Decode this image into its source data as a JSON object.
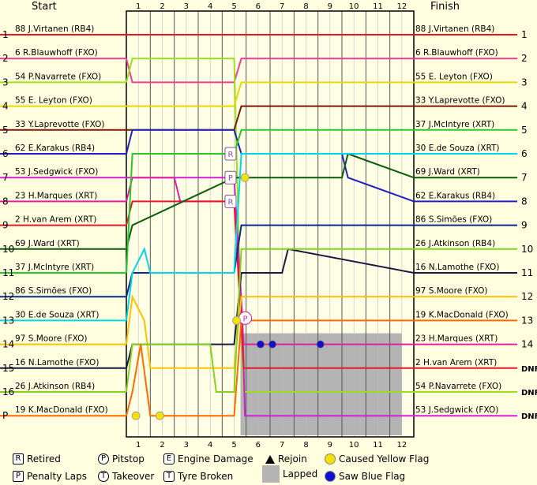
{
  "header": {
    "start": "Start",
    "finish": "Finish"
  },
  "chart_data": {
    "type": "line",
    "laps": 12,
    "x_ticks": [
      "1",
      "2",
      "3",
      "4",
      "5",
      "6",
      "7",
      "8",
      "9",
      "10",
      "11",
      "12"
    ],
    "y_left_labels": [
      "1",
      "2",
      "3",
      "4",
      "5",
      "6",
      "7",
      "8",
      "9",
      "10",
      "11",
      "12",
      "13",
      "14",
      "15",
      "16",
      "P"
    ],
    "y_right_labels": [
      "1",
      "2",
      "3",
      "4",
      "5",
      "6",
      "7",
      "8",
      "9",
      "10",
      "11",
      "12",
      "13",
      "14",
      "DNF",
      "DNF",
      "DNF"
    ],
    "lapped_range": [
      4.5,
      11.5
    ],
    "series": [
      {
        "name": "88 J.Virtanen (RB4)",
        "finish": "88 J.Virtanen (RB4)",
        "color": "#e8161b",
        "points": [
          [
            0,
            1
          ],
          [
            12,
            1
          ]
        ]
      },
      {
        "name": "6 R.Blauwhoff (FXO)",
        "finish": "6 R.Blauwhoff (FXO)",
        "color": "#f23c8c",
        "points": [
          [
            0,
            2
          ],
          [
            0.25,
            3
          ],
          [
            4.5,
            3
          ],
          [
            4.8,
            2
          ],
          [
            12,
            2
          ]
        ]
      },
      {
        "name": "54 P.Navarrete (FXO)",
        "finish": "54 P.Navarrete (FXO)",
        "color": "#9de017",
        "points": [
          [
            0,
            3
          ],
          [
            0.25,
            2
          ],
          [
            4.5,
            2
          ],
          [
            4.75,
            12
          ],
          [
            4.9,
            16
          ],
          [
            12,
            16
          ]
        ]
      },
      {
        "name": "55 E. Leyton (FXO)",
        "finish": "55 E. Leyton (FXO)",
        "color": "#e6d800",
        "points": [
          [
            0,
            4
          ],
          [
            4.5,
            4
          ],
          [
            4.8,
            3
          ],
          [
            12,
            3
          ]
        ]
      },
      {
        "name": "33 Y.Laprevotte (FXO)",
        "finish": "33 Y.Laprevotte (FXO)",
        "color": "#7a1a00",
        "points": [
          [
            0,
            5
          ],
          [
            4.5,
            5
          ],
          [
            4.8,
            4
          ],
          [
            12,
            4
          ]
        ]
      },
      {
        "name": "62 E.Karakus (RB4)",
        "finish": "62 E.Karakus (RB4)",
        "color": "#2020c0",
        "points": [
          [
            0,
            6
          ],
          [
            0.25,
            5
          ],
          [
            4.5,
            5
          ],
          [
            4.8,
            6
          ],
          [
            9,
            6
          ],
          [
            9.25,
            7
          ],
          [
            12,
            8
          ]
        ]
      },
      {
        "name": "53 J.Sedgwick (FXO)",
        "finish": "53 J.Sedgwick (FXO)",
        "color": "#d020d0",
        "points": [
          [
            0,
            7
          ],
          [
            4.5,
            7
          ],
          [
            4.85,
            13
          ],
          [
            4.95,
            17
          ],
          [
            12,
            17
          ]
        ]
      },
      {
        "name": "23 H.Marques (XRT)",
        "finish": "23 H.Marques (XRT)",
        "color": "#e020a0",
        "points": [
          [
            0,
            8
          ],
          [
            0.25,
            7
          ],
          [
            2,
            7
          ],
          [
            2.25,
            8
          ],
          [
            4.5,
            8
          ],
          [
            4.9,
            14
          ],
          [
            12,
            14
          ]
        ]
      },
      {
        "name": "2 H.van Arem (XRT)",
        "finish": "2 H.van Arem (XRT)",
        "color": "#e8162a",
        "points": [
          [
            0,
            9
          ],
          [
            0.25,
            8
          ],
          [
            4.5,
            8
          ],
          [
            4.9,
            15
          ],
          [
            12,
            15
          ]
        ]
      },
      {
        "name": "69 J.Ward (XRT)",
        "finish": "69 J.Ward (XRT)",
        "color": "#0a5c0a",
        "points": [
          [
            0,
            10
          ],
          [
            0.25,
            9
          ],
          [
            4.5,
            7
          ],
          [
            9,
            7
          ],
          [
            9.25,
            6
          ],
          [
            12,
            7
          ]
        ]
      },
      {
        "name": "37 J.McIntyre (XRT)",
        "finish": "37 J.McIntyre (XRT)",
        "color": "#28c828",
        "points": [
          [
            0,
            11
          ],
          [
            0.25,
            6
          ],
          [
            4.5,
            6
          ],
          [
            4.8,
            5
          ],
          [
            12,
            5
          ]
        ]
      },
      {
        "name": "86 S.Simões (FXO)",
        "finish": "86 S.Simões (FXO)",
        "color": "#0a2a8c",
        "points": [
          [
            0,
            12
          ],
          [
            0.25,
            11
          ],
          [
            4.5,
            11
          ],
          [
            4.8,
            9
          ],
          [
            12,
            9
          ]
        ]
      },
      {
        "name": "30 E.de Souza (XRT)",
        "finish": "30 E.de Souza (XRT)",
        "color": "#00d8e8",
        "points": [
          [
            0,
            13
          ],
          [
            0.25,
            11
          ],
          [
            0.75,
            10
          ],
          [
            1,
            11
          ],
          [
            4.5,
            11
          ],
          [
            4.8,
            6
          ],
          [
            12,
            6
          ]
        ]
      },
      {
        "name": "97 S.Moore (FXO)",
        "finish": "97 S.Moore (FXO)",
        "color": "#ffc000",
        "points": [
          [
            0,
            14
          ],
          [
            0.25,
            12
          ],
          [
            0.75,
            13
          ],
          [
            1,
            15
          ],
          [
            4.5,
            15
          ],
          [
            4.8,
            12
          ],
          [
            12,
            12
          ]
        ]
      },
      {
        "name": "16 N.Lamothe (FXO)",
        "finish": "16 N.Lamothe (FXO)",
        "color": "#1a1a40",
        "points": [
          [
            0,
            15
          ],
          [
            0.25,
            14
          ],
          [
            4.5,
            14
          ],
          [
            4.8,
            11
          ],
          [
            6.5,
            11
          ],
          [
            6.75,
            10
          ],
          [
            12,
            11
          ]
        ]
      },
      {
        "name": "26 J.Atkinson (RB4)",
        "finish": "26 J.Atkinson (RB4)",
        "color": "#86d020",
        "points": [
          [
            0,
            16
          ],
          [
            0.25,
            14
          ],
          [
            3.5,
            14
          ],
          [
            3.75,
            16
          ],
          [
            4.5,
            16
          ],
          [
            4.8,
            10
          ],
          [
            12,
            10
          ]
        ]
      },
      {
        "name": "19 K.MacDonald (FXO)",
        "finish": "19 K.MacDonald (FXO)",
        "color": "#ff6a00",
        "points": [
          [
            0,
            17
          ],
          [
            0.25,
            16
          ],
          [
            0.6,
            14
          ],
          [
            1,
            17
          ],
          [
            4.5,
            17
          ],
          [
            4.8,
            13
          ],
          [
            12,
            13
          ]
        ]
      }
    ],
    "markers": [
      {
        "kind": "retired",
        "label": "R",
        "lap": 4.35,
        "pos": 6
      },
      {
        "kind": "penalty",
        "label": "P",
        "lap": 4.35,
        "pos": 7
      },
      {
        "kind": "retired",
        "label": "R",
        "lap": 4.35,
        "pos": 8
      },
      {
        "kind": "pitstop",
        "label": "P",
        "lap": 4.7,
        "pos": 12.9
      },
      {
        "kind": "yellow",
        "lap": 4.95,
        "pos": 7
      },
      {
        "kind": "yellow",
        "lap": 4.6,
        "pos": 13
      },
      {
        "kind": "yellow",
        "lap": 0.4,
        "pos": 17
      },
      {
        "kind": "yellow",
        "lap": 1.4,
        "pos": 17
      },
      {
        "kind": "blue",
        "lap": 5.6,
        "pos": 14
      },
      {
        "kind": "blue",
        "lap": 6.1,
        "pos": 14
      },
      {
        "kind": "blue",
        "lap": 8.1,
        "pos": 14
      }
    ]
  },
  "legend": {
    "retired": "Retired",
    "penalty": "Penalty Laps",
    "pitstop": "Pitstop",
    "takeover": "Takeover",
    "engine": "Engine Damage",
    "tyre": "Tyre Broken",
    "rejoin": "Rejoin",
    "lapped": "Lapped",
    "yellow": "Caused Yellow Flag",
    "blue": "Saw Blue Flag",
    "icon_retired": "R",
    "icon_penalty": "P",
    "icon_pitstop": "P",
    "icon_takeover": "T",
    "icon_engine": "E",
    "icon_tyre": "T"
  }
}
